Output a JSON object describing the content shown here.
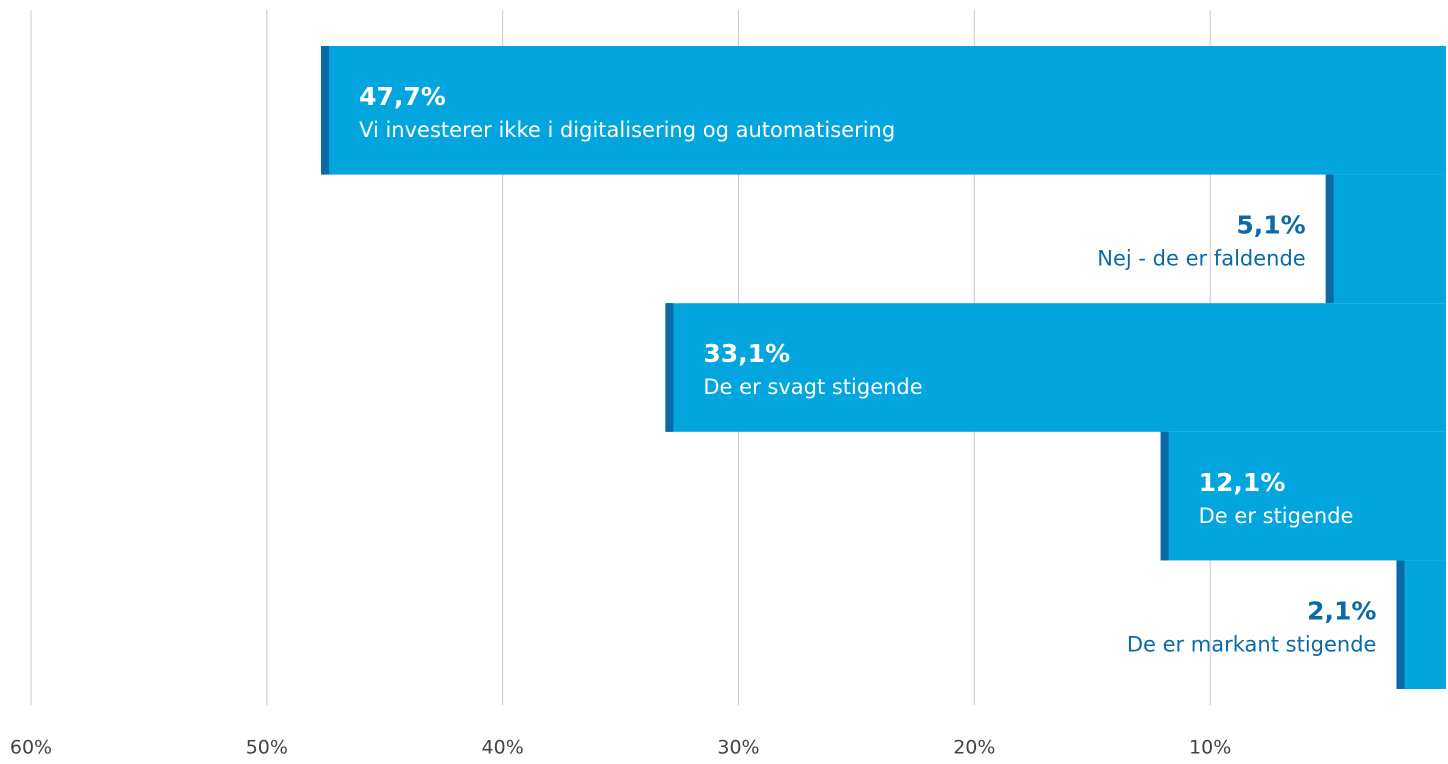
{
  "chart_data": {
    "type": "hbar",
    "categories": [
      "Vi investerer ikke i digitalisering og automatisering",
      "Nej - de er faldende",
      "De er svagt stigende",
      "De er stigende",
      "De er markant stigende"
    ],
    "values": [
      47.7,
      5.1,
      33.1,
      12.1,
      2.1
    ],
    "value_labels": [
      "47,7%",
      "5,1%",
      "33,1%",
      "12,1%",
      "2,1%"
    ],
    "color": "#03a5df",
    "edgecolor": "#0a6aa8",
    "xlim": [
      60,
      0
    ],
    "xticks": [
      {
        "value": 60,
        "label": "60%"
      },
      {
        "value": 50,
        "label": "50%"
      },
      {
        "value": 40,
        "label": "40%"
      },
      {
        "value": 30,
        "label": "30%"
      },
      {
        "value": 20,
        "label": "20%"
      },
      {
        "value": 10,
        "label": "10%"
      }
    ],
    "grid": true
  }
}
